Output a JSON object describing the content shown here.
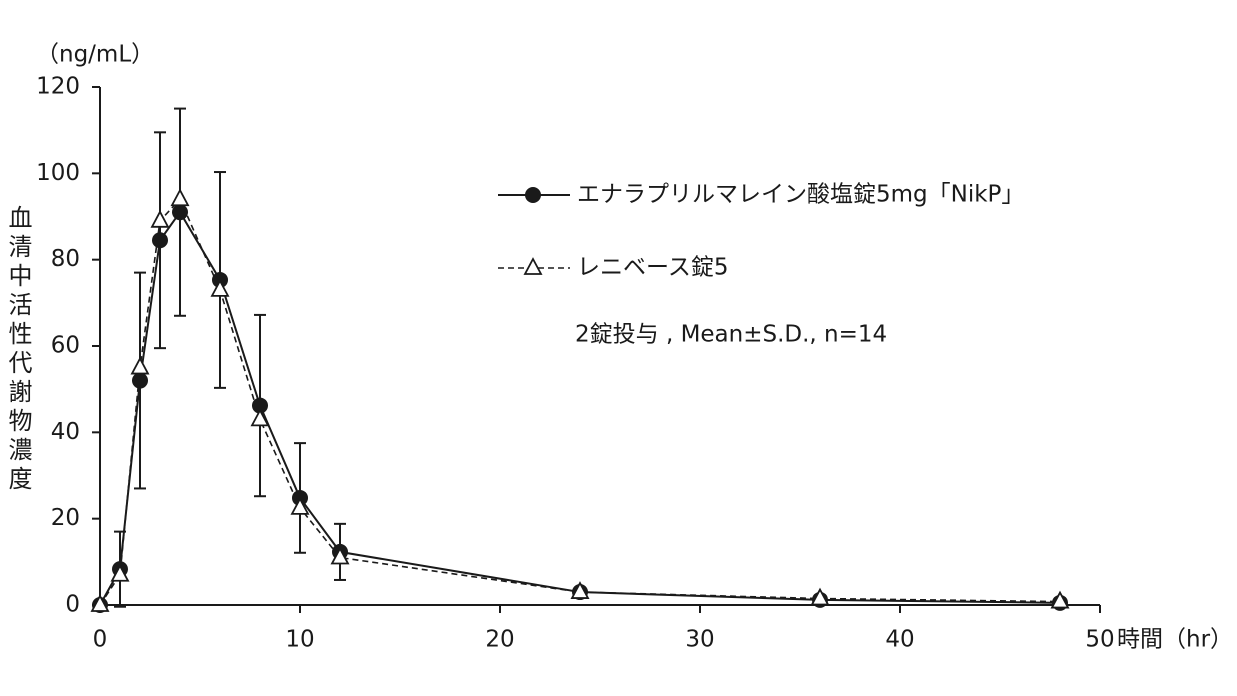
{
  "chart_data": {
    "type": "line",
    "y_unit": "（ng/mL）",
    "y_label": "血清中活性代謝物濃度",
    "x_label": "時間（hr）",
    "annotation": "2錠投与 , Mean±S.D., n=14",
    "x": [
      0,
      1,
      2,
      3,
      4,
      6,
      8,
      10,
      12,
      24,
      36,
      48
    ],
    "series": [
      {
        "name": "エナラプリルマレイン酸塩錠5mg「NikP」",
        "color": "#1a1a1a",
        "marker": "circle",
        "dashed": false,
        "values": [
          0,
          8.3,
          52,
          84.5,
          91,
          75.3,
          46.2,
          24.8,
          12.3,
          3,
          1.2,
          0.5
        ],
        "errors": [
          0,
          8.7,
          25,
          25,
          24,
          25,
          21,
          12.7,
          6.5,
          1,
          0.8,
          0.3
        ]
      },
      {
        "name": "レニベース錠5",
        "color": "#1a1a1a",
        "marker": "triangle",
        "dashed": true,
        "values": [
          0,
          7,
          55,
          89,
          94,
          73,
          43,
          22.5,
          11,
          3,
          1.5,
          0.8
        ]
      }
    ],
    "xlim": [
      0,
      50
    ],
    "xticks": [
      0,
      10,
      20,
      30,
      40,
      50
    ],
    "ylim": [
      0,
      120
    ],
    "yticks": [
      0,
      20,
      40,
      60,
      80,
      100,
      120
    ],
    "grid": false
  }
}
